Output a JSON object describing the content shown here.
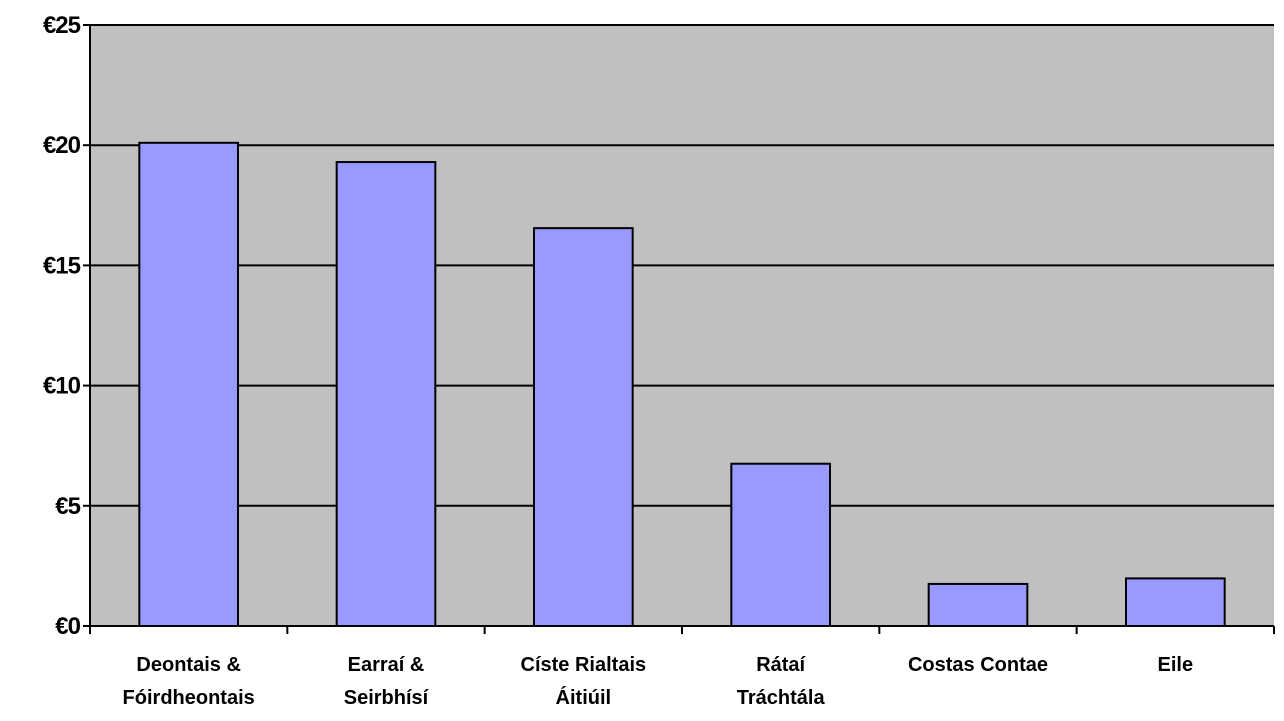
{
  "chart_data": {
    "type": "bar",
    "title": "",
    "xlabel": "",
    "ylabel": "",
    "categories": [
      [
        "Deontais &",
        "Fóirdheontais"
      ],
      [
        "Earraí &",
        "Seirbhísí"
      ],
      [
        "Císte Rialtais",
        "Áitiúil"
      ],
      [
        "Rátaí",
        "Tráchtála"
      ],
      [
        "Costas Contae"
      ],
      [
        "Eile"
      ]
    ],
    "values": [
      20.1,
      19.3,
      16.55,
      6.75,
      1.75,
      1.98
    ],
    "ylim": [
      0,
      25
    ],
    "yticks": [
      0,
      5,
      10,
      15,
      20,
      25
    ],
    "ytick_labels": [
      "€0",
      "€5",
      "€10",
      "€15",
      "€20",
      "€25"
    ],
    "grid": true,
    "legend": "none",
    "colors": {
      "plot_background": "#c0c0c0",
      "bar_fill": "#9999ff",
      "bar_stroke": "#000000",
      "gridline": "#000000",
      "axis": "#000000"
    }
  }
}
